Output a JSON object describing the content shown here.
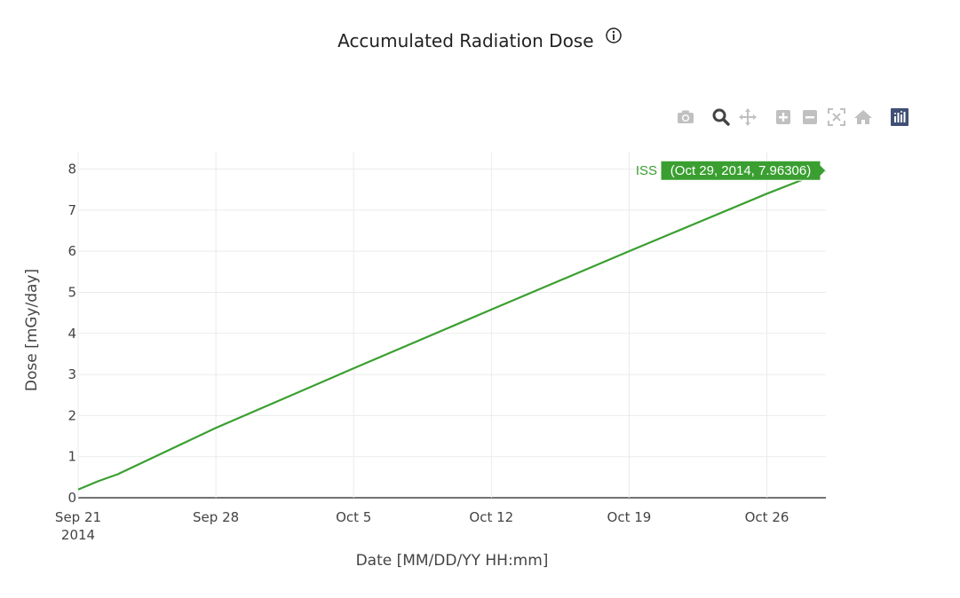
{
  "chart_data": {
    "type": "line",
    "title": "Accumulated Radiation Dose",
    "xlabel": "Date [MM/DD/YY HH:mm]",
    "ylabel": "Dose [mGy/day]",
    "x_tick_labels": [
      "Sep 21",
      "Sep 28",
      "Oct 5",
      "Oct 12",
      "Oct 19",
      "Oct 26"
    ],
    "x_tick_year": "2014",
    "xlim": [
      "2014-09-21",
      "2014-10-29"
    ],
    "ylim": [
      0,
      8.4
    ],
    "y_ticks": [
      0,
      1,
      2,
      3,
      4,
      5,
      6,
      7,
      8
    ],
    "grid": true,
    "line_color": "#3a9f30",
    "series": [
      {
        "name": "ISS",
        "x": [
          "2014-09-21",
          "2014-09-22",
          "2014-09-23",
          "2014-09-28",
          "2014-10-05",
          "2014-10-12",
          "2014-10-19",
          "2014-10-26",
          "2014-10-29"
        ],
        "y": [
          0.2,
          0.4,
          0.57,
          1.7,
          3.15,
          4.58,
          6.0,
          7.4,
          7.96306
        ]
      }
    ],
    "hover": {
      "series": "ISS",
      "label": "(Oct 29, 2014, 7.96306)"
    }
  },
  "modebar": {
    "icons": [
      "camera-icon",
      "zoom-icon",
      "pan-icon",
      "zoom-in-icon",
      "zoom-out-icon",
      "autoscale-icon",
      "home-icon",
      "plotly-logo-icon"
    ]
  }
}
